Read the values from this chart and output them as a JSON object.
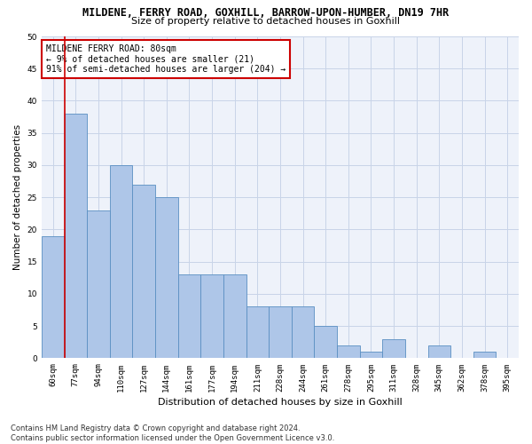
{
  "title": "MILDENE, FERRY ROAD, GOXHILL, BARROW-UPON-HUMBER, DN19 7HR",
  "subtitle": "Size of property relative to detached houses in Goxhill",
  "xlabel": "Distribution of detached houses by size in Goxhill",
  "ylabel": "Number of detached properties",
  "categories": [
    "60sqm",
    "77sqm",
    "94sqm",
    "110sqm",
    "127sqm",
    "144sqm",
    "161sqm",
    "177sqm",
    "194sqm",
    "211sqm",
    "228sqm",
    "244sqm",
    "261sqm",
    "278sqm",
    "295sqm",
    "311sqm",
    "328sqm",
    "345sqm",
    "362sqm",
    "378sqm",
    "395sqm"
  ],
  "values": [
    19,
    38,
    23,
    30,
    27,
    25,
    13,
    13,
    13,
    8,
    8,
    8,
    5,
    2,
    1,
    3,
    0,
    2,
    0,
    1,
    0
  ],
  "bar_color": "#aec6e8",
  "bar_edge_color": "#5a8fc2",
  "property_line_color": "#cc0000",
  "annotation_text": "MILDENE FERRY ROAD: 80sqm\n← 9% of detached houses are smaller (21)\n91% of semi-detached houses are larger (204) →",
  "annotation_box_color": "#ffffff",
  "annotation_border_color": "#cc0000",
  "ylim": [
    0,
    50
  ],
  "yticks": [
    0,
    5,
    10,
    15,
    20,
    25,
    30,
    35,
    40,
    45,
    50
  ],
  "grid_color": "#c8d4e8",
  "background_color": "#eef2fa",
  "footer": "Contains HM Land Registry data © Crown copyright and database right 2024.\nContains public sector information licensed under the Open Government Licence v3.0.",
  "title_fontsize": 8.5,
  "subtitle_fontsize": 8,
  "xlabel_fontsize": 8,
  "ylabel_fontsize": 7.5,
  "tick_fontsize": 6.5,
  "annotation_fontsize": 7,
  "footer_fontsize": 6
}
